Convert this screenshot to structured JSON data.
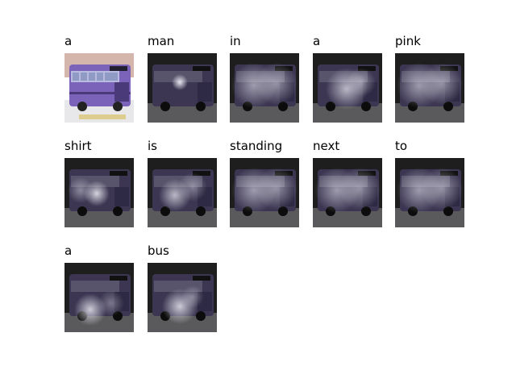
{
  "caption_words": [
    "a",
    "man",
    "in",
    "a",
    "pink",
    "shirt",
    "is",
    "standing",
    "next",
    "to",
    "a",
    "bus"
  ],
  "panels": [
    {
      "word": "a",
      "kind": "original"
    },
    {
      "word": "man",
      "kind": "attention",
      "focus": "center-left-small"
    },
    {
      "word": "in",
      "kind": "attention",
      "focus": "diffuse"
    },
    {
      "word": "a",
      "kind": "attention",
      "focus": "center"
    },
    {
      "word": "pink",
      "kind": "attention",
      "focus": "diffuse"
    },
    {
      "word": "shirt",
      "kind": "attention",
      "focus": "left"
    },
    {
      "word": "is",
      "kind": "attention",
      "focus": "left-lower"
    },
    {
      "word": "standing",
      "kind": "attention",
      "focus": "diffuse"
    },
    {
      "word": "next",
      "kind": "attention",
      "focus": "diffuse"
    },
    {
      "word": "to",
      "kind": "attention",
      "focus": "diffuse"
    },
    {
      "word": "a",
      "kind": "attention",
      "focus": "lower-left"
    },
    {
      "word": "bus",
      "kind": "attention",
      "focus": "lower-center"
    }
  ],
  "colors": {
    "bus_body": "#7a63b8",
    "bus_dark": "#4a3a7a",
    "sky": "#b07a6a",
    "ground": "#e8e8ea",
    "overlay_dark": "#1e1e1e",
    "attention_light": "#f0f0f8"
  }
}
